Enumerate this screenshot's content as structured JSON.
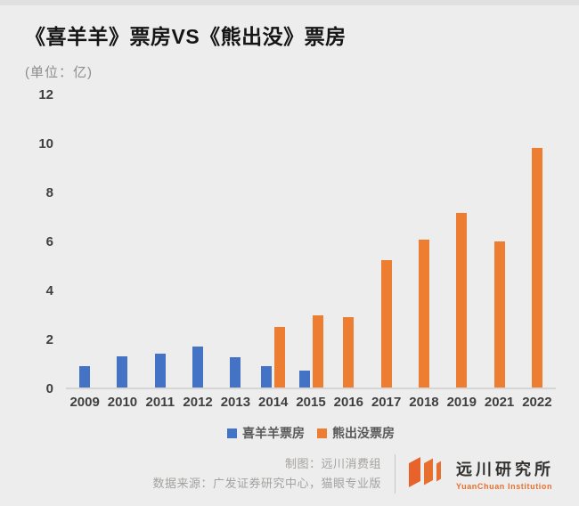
{
  "header": {
    "title": "《喜羊羊》票房VS《熊出没》票房",
    "unit_label": "(单位：亿)"
  },
  "colors": {
    "background": "#ededed",
    "series_blue": "#4472c4",
    "series_orange": "#ed7d31",
    "logo_orange": "#e8632c",
    "axis_text": "#3f3f3f",
    "footer_text": "#a4a2a0"
  },
  "chart_data": {
    "type": "bar",
    "title": "《喜羊羊》票房VS《熊出没》票房",
    "unit": "亿",
    "categories": [
      "2009",
      "2010",
      "2011",
      "2012",
      "2013",
      "2014",
      "2015",
      "2016",
      "2017",
      "2018",
      "2019",
      "2021",
      "2022"
    ],
    "series": [
      {
        "key": "xiyangyang",
        "name": "喜羊羊票房",
        "color": "#4472c4",
        "values": [
          0.86,
          1.28,
          1.4,
          1.67,
          1.24,
          0.86,
          0.68,
          null,
          null,
          null,
          null,
          null,
          null
        ]
      },
      {
        "key": "xiongchumo",
        "name": "熊出没票房",
        "color": "#ed7d31",
        "values": [
          null,
          null,
          null,
          null,
          null,
          2.47,
          2.95,
          2.88,
          5.21,
          6.05,
          7.14,
          5.95,
          9.77
        ]
      }
    ],
    "ylim": [
      0,
      12
    ],
    "yticks": [
      0,
      2,
      4,
      6,
      8,
      10,
      12
    ],
    "grid": false,
    "legend_position": "bottom"
  },
  "footer": {
    "credit": "制图：远川消费组",
    "source": "数据来源：广发证券研究中心，猫眼专业版",
    "logo_cn": "远川研究所",
    "logo_en": "YuanChuan Institution"
  }
}
